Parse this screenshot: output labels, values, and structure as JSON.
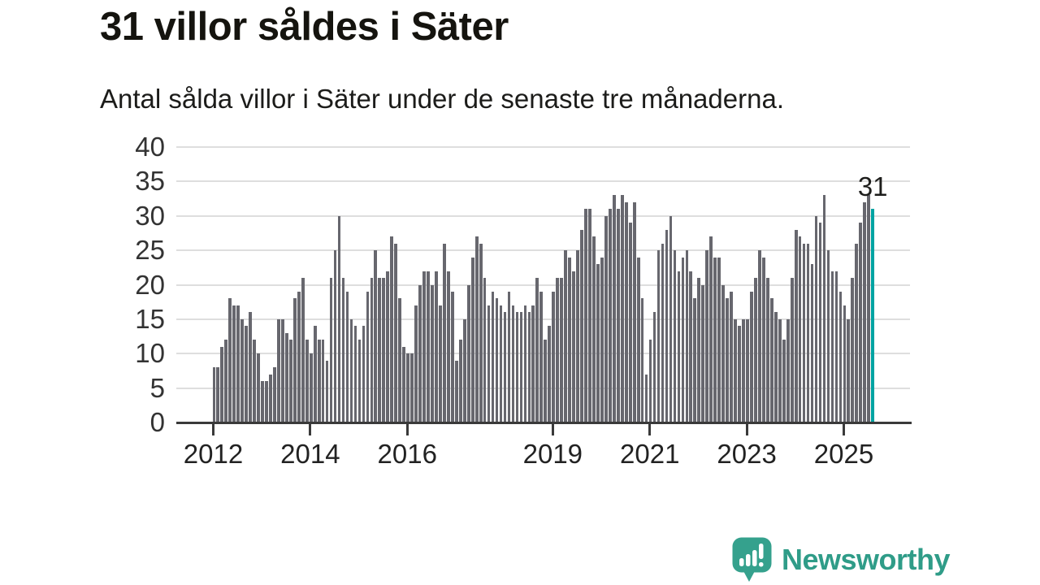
{
  "header": {
    "title": "31 villor såldes i Säter",
    "subtitle": "Antal sålda villor i Säter under de senaste tre månaderna."
  },
  "chart_data": {
    "type": "bar",
    "title": "31 villor såldes i Säter",
    "subtitle": "Antal sålda villor i Säter under de senaste tre månaderna.",
    "xlabel": "",
    "ylabel": "",
    "ylim": [
      0,
      40
    ],
    "grid": true,
    "legend": false,
    "x_start": "2012-01",
    "x_end": "2025-08",
    "y_ticks": [
      0,
      5,
      10,
      15,
      20,
      25,
      30,
      35,
      40
    ],
    "x_ticks": [
      {
        "label": "2012",
        "month_index": 0
      },
      {
        "label": "2014",
        "month_index": 24
      },
      {
        "label": "2016",
        "month_index": 48
      },
      {
        "label": "2019",
        "month_index": 84
      },
      {
        "label": "2021",
        "month_index": 108
      },
      {
        "label": "2023",
        "month_index": 132
      },
      {
        "label": "2025",
        "month_index": 156
      }
    ],
    "series": [
      {
        "name": "Antal sålda villor, rullande tre månader",
        "values_by_year": [
          {
            "year": 2012,
            "values": [
              8,
              8,
              11,
              12,
              18,
              17,
              17,
              15,
              14,
              16,
              12,
              10
            ]
          },
          {
            "year": 2013,
            "values": [
              6,
              6,
              7,
              8,
              15,
              15,
              13,
              12,
              18,
              19,
              21,
              12
            ]
          },
          {
            "year": 2014,
            "values": [
              10,
              14,
              12,
              12,
              9,
              21,
              25,
              30,
              21,
              19,
              15,
              14
            ]
          },
          {
            "year": 2015,
            "values": [
              12,
              14,
              19,
              21,
              25,
              21,
              21,
              22,
              27,
              26,
              18,
              11
            ]
          },
          {
            "year": 2016,
            "values": [
              10,
              10,
              17,
              20,
              22,
              22,
              20,
              22,
              17,
              26,
              22,
              19
            ]
          },
          {
            "year": 2017,
            "values": [
              9,
              12,
              15,
              20,
              24,
              27,
              26,
              21,
              17,
              19,
              18,
              17
            ]
          },
          {
            "year": 2018,
            "values": [
              16,
              19,
              17,
              16,
              16,
              17,
              16,
              17,
              21,
              19,
              12,
              14
            ]
          },
          {
            "year": 2019,
            "values": [
              19,
              21,
              21,
              25,
              24,
              22,
              25,
              28,
              31,
              31,
              27,
              23
            ]
          },
          {
            "year": 2020,
            "values": [
              24,
              30,
              31,
              33,
              31,
              33,
              32,
              29,
              32,
              24,
              18,
              7
            ]
          },
          {
            "year": 2021,
            "values": [
              12,
              16,
              25,
              26,
              28,
              30,
              25,
              22,
              24,
              25,
              22,
              18
            ]
          },
          {
            "year": 2022,
            "values": [
              21,
              20,
              25,
              27,
              24,
              24,
              20,
              18,
              19,
              15,
              14,
              15
            ]
          },
          {
            "year": 2023,
            "values": [
              15,
              19,
              21,
              25,
              24,
              21,
              18,
              16,
              15,
              12,
              15,
              21
            ]
          },
          {
            "year": 2024,
            "values": [
              28,
              27,
              26,
              26,
              23,
              30,
              29,
              33,
              25,
              22,
              22,
              19
            ]
          },
          {
            "year": 2025,
            "values": [
              17,
              15,
              21,
              26,
              29,
              32,
              33,
              31
            ]
          }
        ]
      }
    ],
    "highlight_last_bar": true,
    "annotation": {
      "text": "31",
      "value": 31
    }
  },
  "colors": {
    "bar": "#67676e",
    "highlight": "#00a3a2",
    "axis": "#3a3a3a",
    "gridline": "#dedede",
    "brand": "#2f9c88"
  },
  "branding": {
    "wordmark": "Newsworthy",
    "icon": "newsworthy-chart-bubble-icon"
  }
}
